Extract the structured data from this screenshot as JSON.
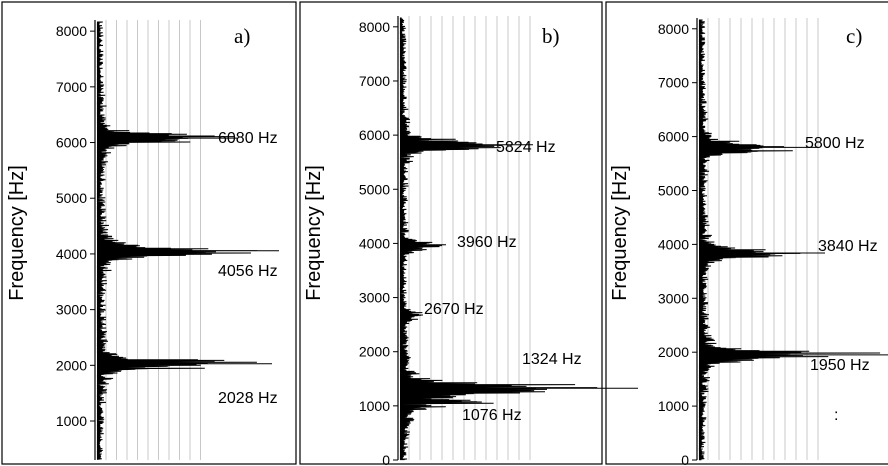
{
  "chart_data": [
    {
      "type": "line",
      "panel_label": "a)",
      "ylabel": "Frequency [Hz]",
      "ylim": [
        300,
        8200
      ],
      "yticks": [
        1000,
        2000,
        3000,
        4000,
        5000,
        6000,
        7000,
        8000
      ],
      "grid": "vertical",
      "peaks": [
        {
          "freq": 6080,
          "label": "6080 Hz",
          "amp": 1.0
        },
        {
          "freq": 4056,
          "label": "4056 Hz",
          "amp": 1.3
        },
        {
          "freq": 2028,
          "label": "2028 Hz",
          "amp": 1.25
        }
      ]
    },
    {
      "type": "line",
      "panel_label": "b)",
      "ylabel": "Frequency [Hz]",
      "ylim": [
        0,
        8200
      ],
      "yticks": [
        0,
        1000,
        2000,
        3000,
        4000,
        5000,
        6000,
        7000,
        8000
      ],
      "grid": "vertical",
      "peaks": [
        {
          "freq": 5824,
          "label": "5824 Hz",
          "amp": 0.95
        },
        {
          "freq": 3960,
          "label": "3960 Hz",
          "amp": 0.3
        },
        {
          "freq": 2670,
          "label": "2670 Hz",
          "amp": 0.15
        },
        {
          "freq": 1324,
          "label": "1324 Hz",
          "amp": 1.7
        },
        {
          "freq": 1076,
          "label": "1076 Hz",
          "amp": 0.55
        }
      ]
    },
    {
      "type": "line",
      "panel_label": "c)",
      "ylabel": "Frequency [Hz]",
      "ylim": [
        0,
        8200
      ],
      "yticks": [
        0,
        1000,
        2000,
        3000,
        4000,
        5000,
        6000,
        7000,
        8000
      ],
      "grid": "vertical",
      "peaks": [
        {
          "freq": 5800,
          "label": "5800 Hz",
          "amp": 0.85
        },
        {
          "freq": 3840,
          "label": "3840 Hz",
          "amp": 0.9
        },
        {
          "freq": 1950,
          "label": "1950 Hz",
          "amp": 1.4
        }
      ],
      "annotation": ":"
    }
  ],
  "colors": {
    "trace": "#000000",
    "grid": "#c8c8c8",
    "frame": "#000000"
  }
}
